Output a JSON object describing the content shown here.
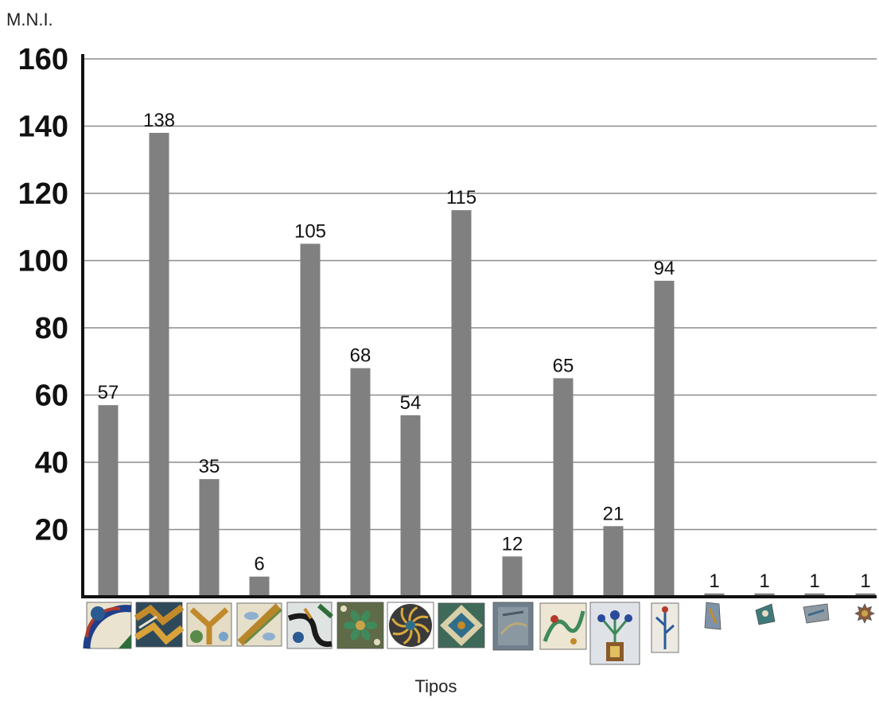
{
  "chart_data": {
    "type": "bar",
    "title": "",
    "xlabel": "Tipos",
    "ylabel": "M.N.I.",
    "ylim": [
      0,
      160
    ],
    "yticks": [
      20,
      40,
      60,
      80,
      100,
      120,
      140,
      160
    ],
    "grid": true,
    "categories": [
      "",
      "",
      "",
      "",
      "",
      "",
      "",
      "",
      "",
      "",
      "",
      "",
      "",
      "",
      "",
      ""
    ],
    "values": [
      57,
      138,
      35,
      6,
      105,
      68,
      54,
      115,
      12,
      65,
      21,
      94,
      1,
      1,
      1,
      1
    ],
    "data_labels": [
      "57",
      "138",
      "35",
      "6",
      "105",
      "68",
      "54",
      "115",
      "12",
      "65",
      "21",
      "94",
      "1",
      "1",
      "1",
      "1"
    ],
    "category_icons": [
      "tile-blue-red-quarter-icon",
      "tile-zigzag-ochre-icon",
      "tile-ochre-interlace-icon",
      "tile-ochre-leaf-diagonal-icon",
      "tile-black-curve-icon",
      "tile-green-flower-icon",
      "tile-rosette-whirl-icon",
      "tile-diamond-star-icon",
      "tile-worn-grey-icon",
      "tile-green-scroll-icon",
      "tile-flower-vase-icon",
      "tile-blue-sprig-fragment-icon",
      "tile-fragment-blue-icon",
      "tile-fragment-teal-icon",
      "tile-fragment-grey-icon",
      "tile-fragment-star-icon"
    ],
    "colors": {
      "bar": "#808080",
      "grid": "#8c8c8c",
      "axis": "#111111"
    }
  }
}
